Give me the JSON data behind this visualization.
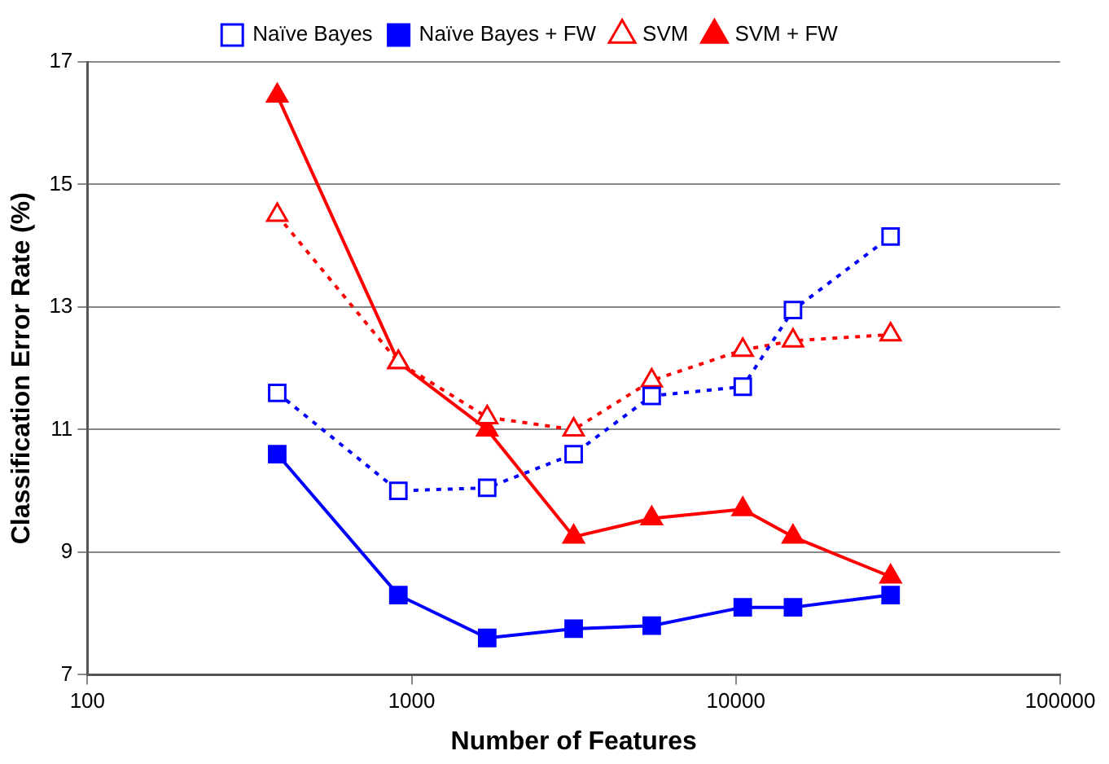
{
  "chart_data": {
    "type": "line",
    "xlabel": "Number of Features",
    "ylabel": "Classification Error Rate (%)",
    "x": [
      385,
      910,
      1710,
      3160,
      5500,
      10500,
      15000,
      30000
    ],
    "log": "x",
    "xlim": [
      100,
      100000
    ],
    "xticks": [
      100,
      1000,
      10000,
      100000
    ],
    "ylim": [
      7,
      17
    ],
    "yticks": [
      7,
      9,
      11,
      13,
      15,
      17
    ],
    "grid": "y",
    "legend": "top",
    "series": [
      {
        "name": "Naïve Bayes",
        "color": "#0000ff",
        "marker": "square",
        "line_style": "dotted",
        "values": [
          11.6,
          10.0,
          10.05,
          10.6,
          11.55,
          11.7,
          12.95,
          14.15
        ]
      },
      {
        "name": "Naïve Bayes + FW",
        "color": "#0000ff",
        "marker": "square",
        "line_style": "solid",
        "values": [
          10.6,
          8.3,
          7.6,
          7.75,
          7.8,
          8.1,
          8.1,
          8.3
        ]
      },
      {
        "name": "SVM",
        "color": "#ff0000",
        "marker": "triangle",
        "line_style": "dotted",
        "values": [
          14.5,
          12.1,
          11.2,
          11.0,
          11.8,
          12.3,
          12.45,
          12.55
        ]
      },
      {
        "name": "SVM + FW",
        "color": "#ff0000",
        "marker": "triangle",
        "line_style": "solid",
        "values": [
          16.45,
          12.1,
          11.0,
          9.25,
          9.55,
          9.7,
          9.25,
          8.6
        ]
      }
    ]
  }
}
